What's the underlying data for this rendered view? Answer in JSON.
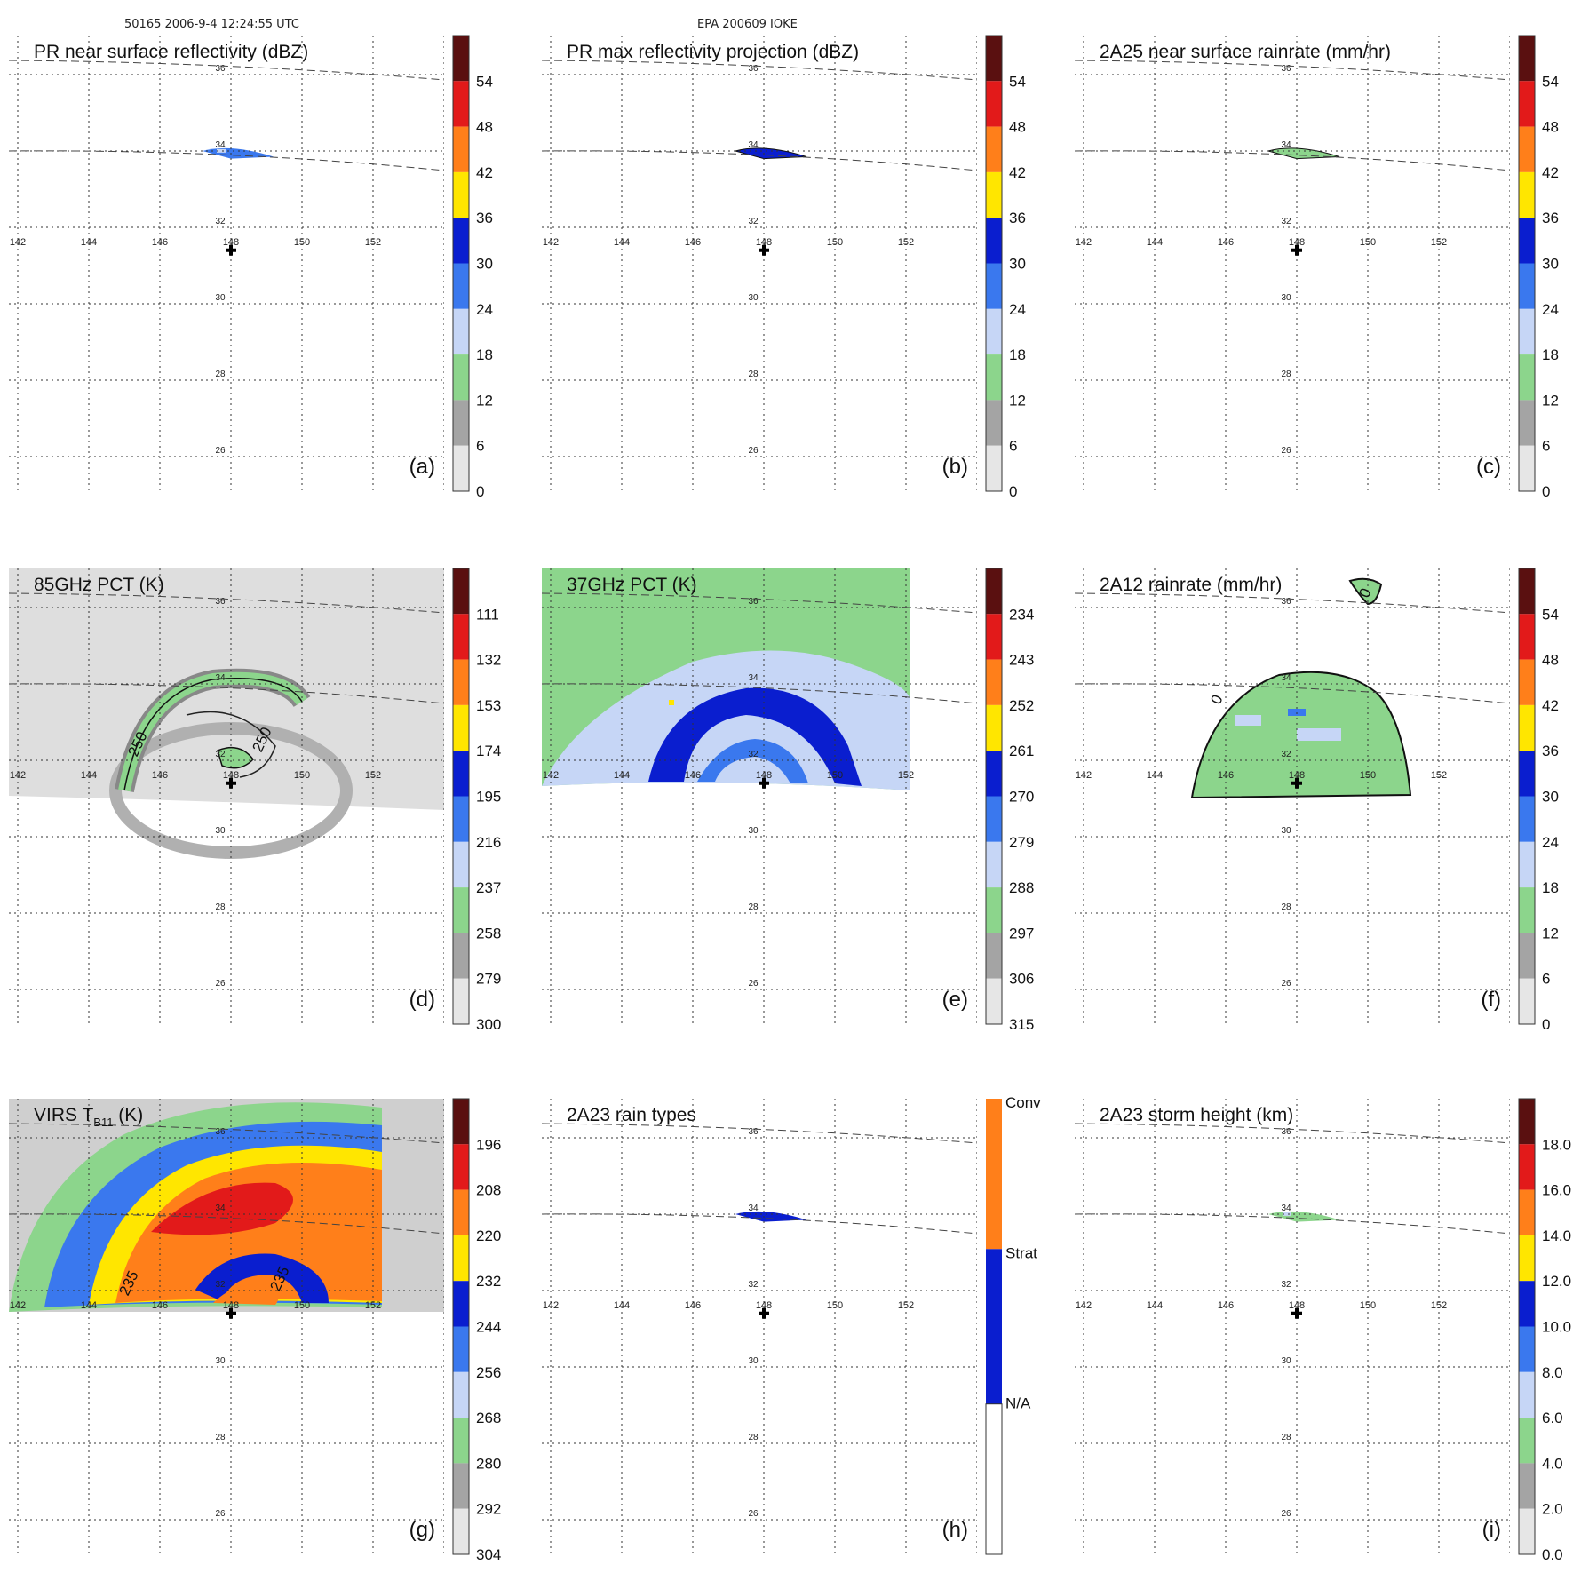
{
  "header": {
    "left": "50165 2006-9-4 12:24:55 UTC",
    "center": "EPA 200609 IOKE"
  },
  "map": {
    "lon_ticks": [
      "142",
      "144",
      "146",
      "148",
      "150",
      "152"
    ],
    "lat_ticks": [
      "36",
      "34",
      "32",
      "30",
      "28",
      "26"
    ],
    "storm_center": {
      "lon": 148,
      "lat": 31.4
    }
  },
  "colors": {
    "darkred": "#5a1010",
    "red": "#e21a1a",
    "orange": "#ff7f1a",
    "yellow": "#ffe600",
    "blue": "#0a1ecf",
    "midblue": "#3a78ee",
    "lightblue": "#c6d6f6",
    "green": "#8cd58c",
    "gray": "#a4a4a4",
    "lightgray": "#e6e6e6"
  },
  "chart_data": [
    {
      "type": "heatmap",
      "panel_label": "(a)",
      "title": "PR near surface reflectivity (dBZ)",
      "colorbar": {
        "ticks": [
          "54",
          "48",
          "42",
          "36",
          "30",
          "24",
          "18",
          "12",
          "6",
          "0"
        ]
      }
    },
    {
      "type": "heatmap",
      "panel_label": "(b)",
      "title": "PR max reflectivity projection (dBZ)",
      "colorbar": {
        "ticks": [
          "54",
          "48",
          "42",
          "36",
          "30",
          "24",
          "18",
          "12",
          "6",
          "0"
        ]
      }
    },
    {
      "type": "heatmap",
      "panel_label": "(c)",
      "title": "2A25 near surface rainrate (mm/hr)",
      "colorbar": {
        "ticks": [
          "54",
          "48",
          "42",
          "36",
          "30",
          "24",
          "18",
          "12",
          "6",
          "0"
        ]
      }
    },
    {
      "type": "heatmap",
      "panel_label": "(d)",
      "title": "85GHz PCT (K)",
      "colorbar": {
        "ticks": [
          "111",
          "132",
          "153",
          "174",
          "195",
          "216",
          "237",
          "258",
          "279",
          "300"
        ]
      },
      "contour_labels": [
        "250",
        "250"
      ]
    },
    {
      "type": "heatmap",
      "panel_label": "(e)",
      "title": "37GHz PCT (K)",
      "colorbar": {
        "ticks": [
          "234",
          "243",
          "252",
          "261",
          "270",
          "279",
          "288",
          "297",
          "306",
          "315"
        ]
      }
    },
    {
      "type": "heatmap",
      "panel_label": "(f)",
      "title": "2A12 rainrate (mm/hr)",
      "colorbar": {
        "ticks": [
          "54",
          "48",
          "42",
          "36",
          "30",
          "24",
          "18",
          "12",
          "6",
          "0"
        ]
      },
      "contour_labels": [
        "0",
        "0"
      ]
    },
    {
      "type": "heatmap",
      "panel_label": "(g)",
      "title": "VIRS T",
      "title_sub": "B11",
      "title_end": " (K)",
      "colorbar": {
        "ticks": [
          "196",
          "208",
          "220",
          "232",
          "244",
          "256",
          "268",
          "280",
          "292",
          "304"
        ]
      },
      "contour_labels": [
        "235",
        "235"
      ]
    },
    {
      "type": "heatmap",
      "panel_label": "(h)",
      "title": "2A23 rain types",
      "colorbar": {
        "ticks": [
          "Conv",
          "Strat",
          "N/A"
        ]
      }
    },
    {
      "type": "heatmap",
      "panel_label": "(i)",
      "title": "2A23 storm height (km)",
      "colorbar": {
        "ticks": [
          "18.0",
          "16.0",
          "14.0",
          "12.0",
          "10.0",
          "8.0",
          "6.0",
          "4.0",
          "2.0",
          "0.0"
        ]
      }
    }
  ]
}
